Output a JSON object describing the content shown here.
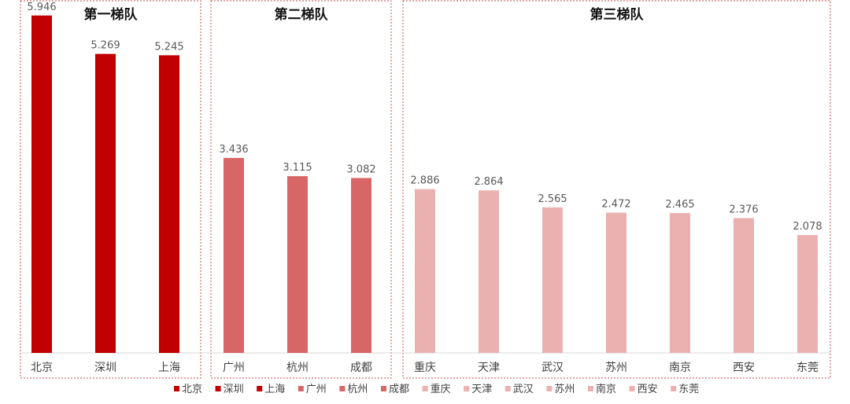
{
  "chart_data": {
    "type": "bar",
    "categories": [
      "北京",
      "深圳",
      "上海",
      "广州",
      "杭州",
      "成都",
      "重庆",
      "天津",
      "武汉",
      "苏州",
      "南京",
      "西安",
      "东莞"
    ],
    "values": [
      5.946,
      5.269,
      5.245,
      3.436,
      3.115,
      3.082,
      2.886,
      2.864,
      2.565,
      2.472,
      2.465,
      2.376,
      2.078
    ],
    "value_labels": [
      "5.946",
      "5.269",
      "5.245",
      "3.436",
      "3.115",
      "3.082",
      "2.886",
      "2.864",
      "2.565",
      "2.472",
      "2.465",
      "2.376",
      "2.078"
    ],
    "tiers": [
      {
        "title": "第一梯队",
        "start": 0,
        "end": 2,
        "color": "#c00000"
      },
      {
        "title": "第二梯队",
        "start": 3,
        "end": 5,
        "color": "#d96666"
      },
      {
        "title": "第三梯队",
        "start": 6,
        "end": 12,
        "color": "#ebb1b1"
      }
    ],
    "ylim": [
      0,
      6
    ],
    "grid": false,
    "legend": "bottom",
    "title": "",
    "xlabel": "",
    "ylabel": ""
  }
}
